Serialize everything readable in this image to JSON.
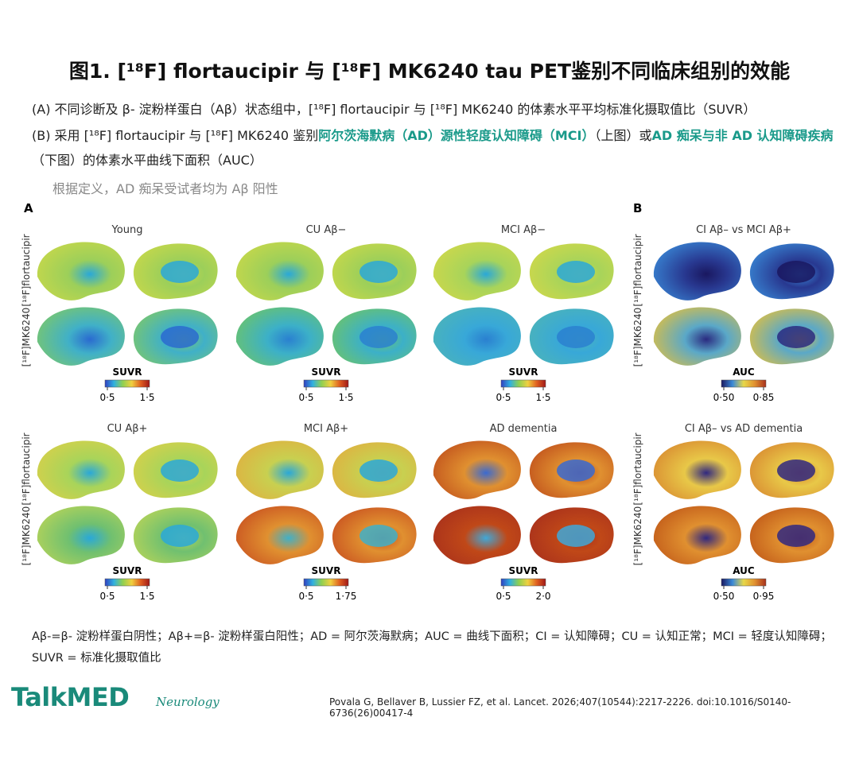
{
  "title": "图1. [¹⁸F] flortaucipir 与 [¹⁸F] MK6240 tau PET鉴别不同临床组别的效能",
  "caption_a": "(A) 不同诊断及 β- 淀粉样蛋白（Aβ）状态组中，[¹⁸F] flortaucipir 与 [¹⁸F] MK6240 的体素水平平均标准化摄取值比（SUVR）",
  "caption_b": [
    "(B) 采用 [¹⁸F] flortaucipir 与 [¹⁸F] MK6240 鉴别",
    "阿尔茨海默病（AD）源性轻度认知障碍（MCI）",
    "（上图）或",
    "AD 痴呆与非 AD 认知障碍疾病",
    "（下图）的体素水平曲线下面积（AUC）"
  ],
  "note": "根据定义，AD 痴呆受试者均为 Aβ 阳性",
  "figure": {
    "section_labels": [
      "A",
      "B"
    ],
    "row_labels": [
      "[¹⁸F]flortaucipir",
      "[¹⁸F]MK6240"
    ],
    "panels": [
      {
        "title": "Young",
        "scale_label": "SUVR",
        "ticks": [
          "0·5",
          "1·5"
        ]
      },
      {
        "title": "CU Aβ−",
        "scale_label": "SUVR",
        "ticks": [
          "0·5",
          "1·5"
        ]
      },
      {
        "title": "MCI Aβ−",
        "scale_label": "SUVR",
        "ticks": [
          "0·5",
          "1·5"
        ]
      },
      {
        "title": "CI Aβ– vs MCI Aβ+",
        "scale_label": "AUC",
        "ticks": [
          "0·50",
          "0·85"
        ]
      },
      {
        "title": "CU Aβ+",
        "scale_label": "SUVR",
        "ticks": [
          "0·5",
          "1·5"
        ]
      },
      {
        "title": "MCI Aβ+",
        "scale_label": "SUVR",
        "ticks": [
          "0·5",
          "1·75"
        ]
      },
      {
        "title": "AD dementia",
        "scale_label": "SUVR",
        "ticks": [
          "0·5",
          "2·0"
        ]
      },
      {
        "title": "CI Aβ– vs AD dementia",
        "scale_label": "AUC",
        "ticks": [
          "0·50",
          "0·95"
        ]
      }
    ]
  },
  "footnote": "Aβ-=β- 淀粉样蛋白阴性；Aβ+=β- 淀粉样蛋白阳性；AD = 阿尔茨海默病；AUC = 曲线下面积；CI = 认知障碍；CU = 认知正常；MCI = 轻度认知障碍；SUVR = 标准化摄取值比",
  "logo": "TalkMED",
  "logo_sub": "Neurology",
  "citation": "Povala G, Bellaver B, Lussier FZ, et al. Lancet. 2026;407(10544):2217-2226. doi:10.1016/S0140-6736(26)00417-4"
}
